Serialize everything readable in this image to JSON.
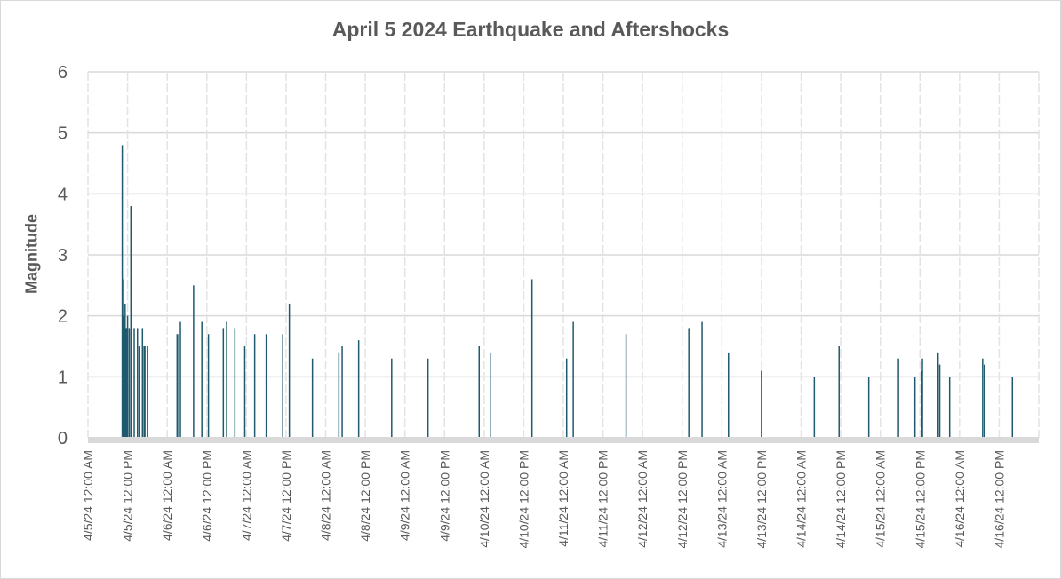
{
  "chart_data": {
    "type": "bar",
    "title": "April 5 2024 Earthquake and Aftershocks",
    "xlabel": "",
    "ylabel": "Magnitude",
    "ylim": [
      0,
      6
    ],
    "y_ticks": [
      "0",
      "1",
      "2",
      "3",
      "4",
      "5",
      "6"
    ],
    "x_tick_labels": [
      "4/5/24 12:00 AM",
      "4/5/24 12:00 PM",
      "4/6/24 12:00 AM",
      "4/6/24 12:00 PM",
      "4/7/24 12:00 AM",
      "4/7/24 12:00 PM",
      "4/8/24 12:00 AM",
      "4/8/24 12:00 PM",
      "4/9/24 12:00 AM",
      "4/9/24 12:00 PM",
      "4/10/24 12:00 AM",
      "4/10/24 12:00 PM",
      "4/11/24 12:00 AM",
      "4/11/24 12:00 PM",
      "4/12/24 12:00 AM",
      "4/12/24 12:00 PM",
      "4/13/24 12:00 AM",
      "4/13/24 12:00 PM",
      "4/14/24 12:00 AM",
      "4/14/24 12:00 PM",
      "4/15/24 12:00 AM",
      "4/15/24 12:00 PM",
      "4/16/24 12:00 AM",
      "4/16/24 12:00 PM"
    ],
    "x_range": [
      "4/5/24 12:00 AM",
      "4/17/24 12:00 AM"
    ],
    "grid": true,
    "legend": "none",
    "bar_color": "#1f5a6f",
    "series": [
      {
        "x": [
          "4/5/24 10:23 AM",
          "4/5/24 10:30 AM",
          "4/5/24 10:37 AM",
          "4/5/24 10:45 AM",
          "4/5/24 10:53 AM",
          "4/5/24 11:00 AM",
          "4/5/24 11:15 AM",
          "4/5/24 11:30 AM",
          "4/5/24 11:45 AM",
          "4/5/24 12:00 PM",
          "4/5/24 12:30 PM",
          "4/5/24 1:00 PM",
          "4/5/24 2:00 PM",
          "4/5/24 3:00 PM",
          "4/5/24 3:30 PM",
          "4/5/24 4:30 PM",
          "4/5/24 5:00 PM",
          "4/5/24 5:15 PM",
          "4/5/24 6:00 PM",
          "4/6/24 3:00 AM",
          "4/6/24 3:30 AM",
          "4/6/24 4:00 AM",
          "4/6/24 8:00 AM",
          "4/6/24 10:30 AM",
          "4/6/24 12:30 PM",
          "4/6/24 5:00 PM",
          "4/6/24 6:00 PM",
          "4/6/24 8:30 PM",
          "4/6/24 11:30 PM",
          "4/7/24 2:30 AM",
          "4/7/24 6:00 AM",
          "4/7/24 11:00 AM",
          "4/7/24 1:00 PM",
          "4/7/24 8:00 PM",
          "4/8/24 4:00 AM",
          "4/8/24 5:00 AM",
          "4/8/24 10:00 AM",
          "4/8/24 8:00 PM",
          "4/9/24 7:00 AM",
          "4/9/24 10:30 PM",
          "4/10/24 2:00 AM",
          "4/10/24 2:30 PM",
          "4/11/24 1:00 AM",
          "4/11/24 3:00 AM",
          "4/11/24 7:00 PM",
          "4/12/24 2:00 PM",
          "4/12/24 6:00 PM",
          "4/13/24 2:00 AM",
          "4/13/24 12:00 PM",
          "4/14/24 4:00 AM",
          "4/14/24 11:30 AM",
          "4/14/24 8:30 PM",
          "4/15/24 5:30 AM",
          "4/15/24 10:30 AM",
          "4/15/24 12:30 PM",
          "4/15/24 12:45 PM",
          "4/15/24 5:30 PM",
          "4/15/24 6:00 PM",
          "4/15/24 9:00 PM",
          "4/16/24 7:00 AM",
          "4/16/24 7:30 AM",
          "4/16/24 4:00 PM"
        ],
        "values": [
          4.8,
          2.6,
          1.9,
          2.0,
          1.8,
          1.9,
          2.2,
          1.8,
          1.8,
          2.0,
          1.8,
          3.8,
          1.8,
          1.8,
          1.5,
          1.8,
          1.5,
          1.5,
          1.5,
          1.7,
          1.7,
          1.9,
          2.5,
          1.9,
          1.7,
          1.8,
          1.9,
          1.8,
          1.5,
          1.7,
          1.7,
          1.7,
          2.2,
          1.3,
          1.4,
          1.5,
          1.6,
          1.3,
          1.3,
          1.5,
          1.4,
          2.6,
          1.3,
          1.9,
          1.7,
          1.8,
          1.9,
          1.4,
          1.1,
          1.0,
          1.5,
          1.0,
          1.3,
          1.0,
          1.1,
          1.3,
          1.4,
          1.2,
          1.0,
          1.3,
          1.2,
          1.0
        ]
      }
    ]
  }
}
